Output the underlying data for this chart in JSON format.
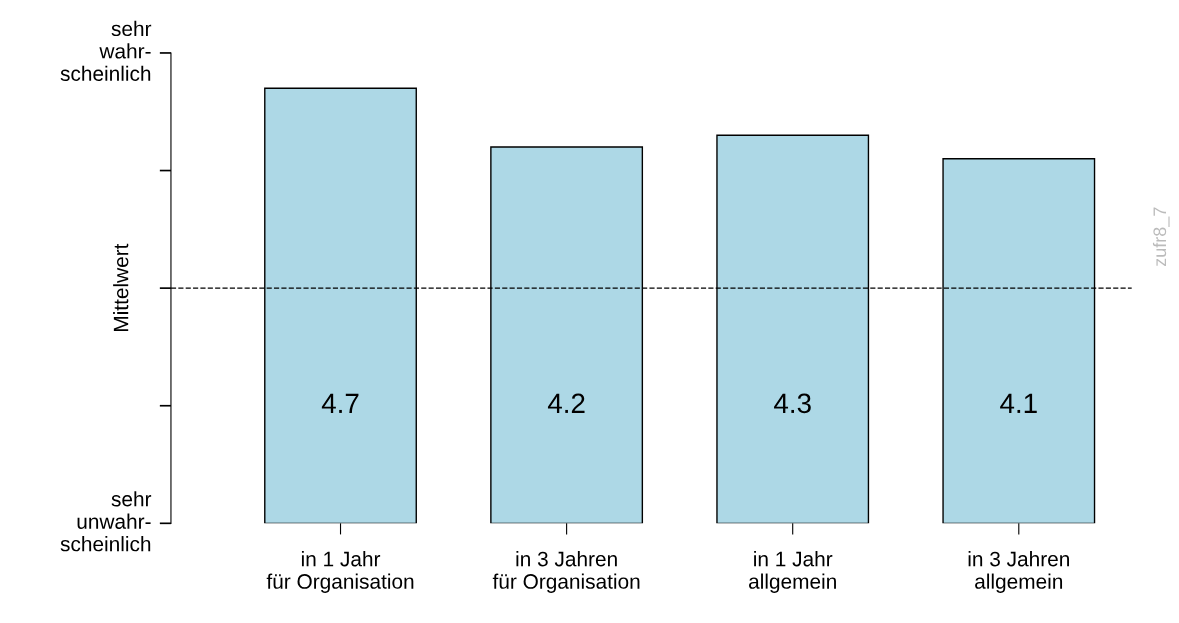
{
  "chart_data": {
    "type": "bar",
    "ylabel": "Mittelwert",
    "categories": [
      "in 1 Jahr\nfür Organisation",
      "in 3 Jahren\nfür Organisation",
      "in 1 Jahr\nallgemein",
      "in 3 Jahren\nallgemein"
    ],
    "values": [
      4.7,
      4.2,
      4.3,
      4.1
    ],
    "color": "#add8e6",
    "data_labels": true,
    "ylim": [
      1,
      5
    ],
    "ref_lines": [
      {
        "axis": "y",
        "value": 3,
        "label": null,
        "color": "#000000",
        "line_style": "dashed"
      }
    ],
    "annotations": [
      "sehr\nwahr-\nscheinlich",
      "sehr\nunwahr-\nscheinlich",
      "zufr8_7"
    ],
    "grid": false,
    "legend": false
  }
}
